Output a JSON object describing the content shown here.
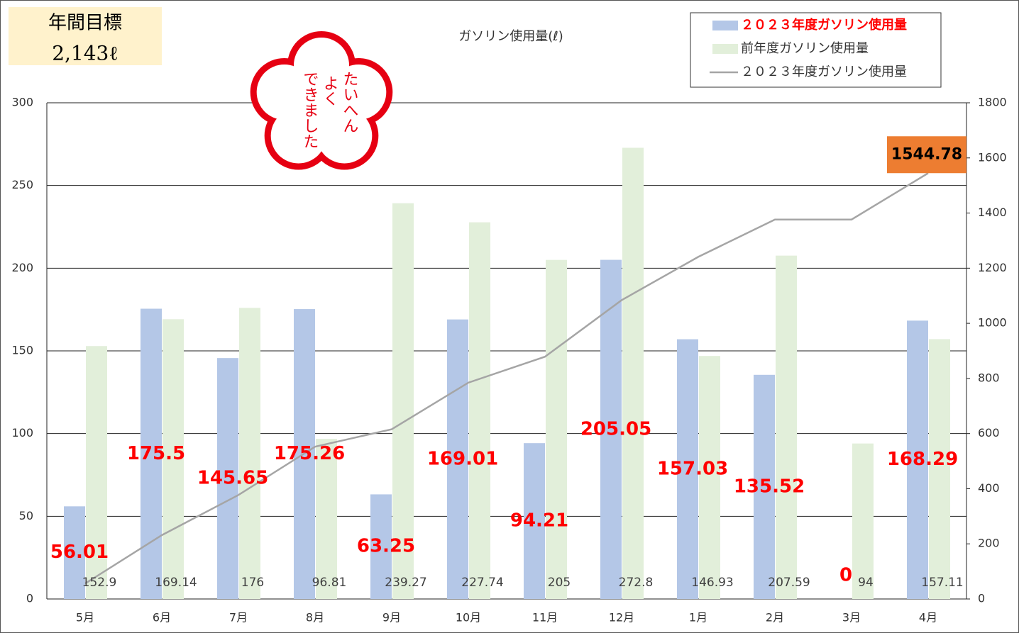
{
  "chart_data": {
    "type": "bar",
    "title": "ガソリン使用量(ℓ)",
    "annotations": {
      "goal_title": "年間目標",
      "goal_value": "2,143ℓ",
      "stamp": [
        "たいへん",
        "よく",
        "できました"
      ]
    },
    "categories": [
      "5月",
      "6月",
      "7月",
      "8月",
      "9月",
      "10月",
      "11月",
      "12月",
      "1月",
      "2月",
      "3月",
      "4月"
    ],
    "series": [
      {
        "name": "２０２３年度ガソリン使用量",
        "color": "#b4c7e7",
        "values": [
          56.01,
          175.5,
          145.65,
          175.26,
          63.25,
          169.01,
          94.21,
          205.05,
          157.03,
          135.52,
          0,
          168.29
        ]
      },
      {
        "name": "前年度ガソリン使用量",
        "color": "#e2efda",
        "values": [
          152.9,
          169.14,
          176,
          96.81,
          239.27,
          227.74,
          205,
          272.8,
          146.93,
          207.59,
          94,
          157.11
        ]
      },
      {
        "name": "２０２３年度ガソリン使用量",
        "color": "#a5a5a5",
        "type": "line",
        "axis": "y2",
        "values": [
          56.01,
          231.51,
          377.16,
          552.42,
          615.67,
          784.68,
          878.89,
          1083.94,
          1240.97,
          1376.49,
          1376.49,
          1544.78
        ]
      }
    ],
    "ylim": [
      0,
      300
    ],
    "yticks": [
      0,
      50,
      100,
      150,
      200,
      250,
      300
    ],
    "y2lim": [
      0,
      1800
    ],
    "y2ticks": [
      0,
      200,
      400,
      600,
      800,
      1000,
      1200,
      1400,
      1600,
      1800
    ],
    "grid": true,
    "legend": "top-right"
  }
}
